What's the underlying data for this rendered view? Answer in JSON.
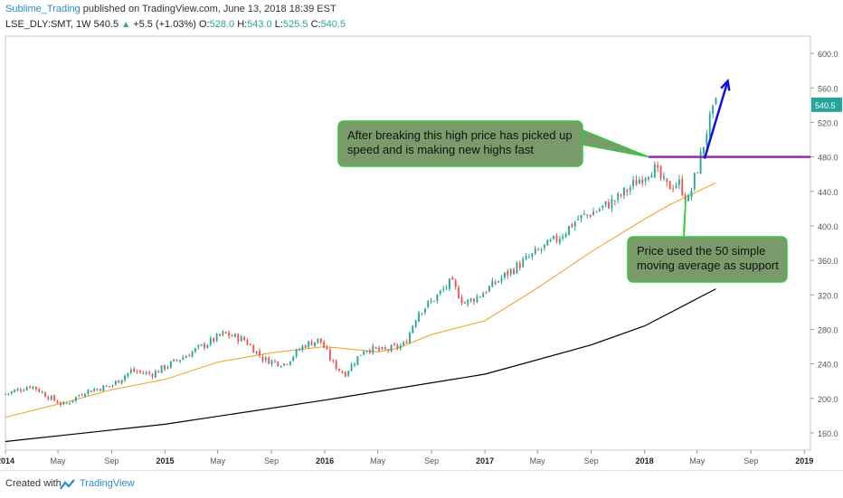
{
  "header": {
    "author": "Sublime_Trading",
    "published": " published on TradingView.com, June 13, 2018 18:39 EST",
    "symbol": "LSE_DLY:SMT, 1W",
    "last": "540.5",
    "change": "+5.5 (+1.03%)",
    "o_label": "O:",
    "o": "528.0",
    "h_label": "H:",
    "h": "543.0",
    "l_label": "L:",
    "l": "525.5",
    "c_label": "C:",
    "c": "540.5"
  },
  "footer": {
    "created": "Created with",
    "brand": "TradingView"
  },
  "colors": {
    "up": "#26a69a",
    "down": "#ef5350",
    "ma50": "#f39c12",
    "ma200": "#000000",
    "resistance": "#9c27b0",
    "arrow": "#1010e0",
    "note_fill": "#7b9a6b",
    "note_border": "#2ecc40",
    "price_badge": "#26a69a"
  },
  "chart_data": {
    "type": "candlestick",
    "title": "",
    "ylim": [
      140,
      620
    ],
    "y_ticks": [
      160,
      200,
      240,
      280,
      320,
      360,
      400,
      440,
      480,
      520,
      560,
      600
    ],
    "y_tick_labels": [
      "160.0",
      "200.0",
      "240.0",
      "280.0",
      "320.0",
      "360.0",
      "400.0",
      "440.0",
      "480.0",
      "520.0",
      "560.0",
      "600.0"
    ],
    "x_tick_labels": [
      "2014",
      "May",
      "Sep",
      "2015",
      "May",
      "Sep",
      "2016",
      "May",
      "Sep",
      "2017",
      "May",
      "Sep",
      "2018",
      "May",
      "Sep",
      "2019"
    ],
    "x_tick_dates": [
      "2014-01-01",
      "2014-05-01",
      "2014-09-01",
      "2015-01-01",
      "2015-05-01",
      "2015-09-01",
      "2016-01-01",
      "2016-05-01",
      "2016-09-01",
      "2017-01-01",
      "2017-05-01",
      "2017-09-01",
      "2018-01-01",
      "2018-05-01",
      "2018-09-01",
      "2019-01-01"
    ],
    "x_bold": [
      "2014",
      "2015",
      "2016",
      "2017",
      "2018",
      "2019"
    ],
    "date_range": [
      "2014-01-01",
      "2019-01-15"
    ],
    "last_price_label": "540.5",
    "last_price": 540.5,
    "close_path": [
      [
        "2014-01-01",
        205
      ],
      [
        "2014-03-01",
        215
      ],
      [
        "2014-04-15",
        200
      ],
      [
        "2014-05-15",
        192
      ],
      [
        "2014-07-01",
        208
      ],
      [
        "2014-09-01",
        215
      ],
      [
        "2014-10-15",
        232
      ],
      [
        "2014-12-01",
        228
      ],
      [
        "2015-02-01",
        245
      ],
      [
        "2015-04-01",
        262
      ],
      [
        "2015-05-15",
        275
      ],
      [
        "2015-07-01",
        268
      ],
      [
        "2015-08-15",
        245
      ],
      [
        "2015-10-01",
        240
      ],
      [
        "2015-11-15",
        262
      ],
      [
        "2015-12-20",
        268
      ],
      [
        "2016-01-20",
        240
      ],
      [
        "2016-02-15",
        228
      ],
      [
        "2016-04-01",
        258
      ],
      [
        "2016-05-15",
        255
      ],
      [
        "2016-07-01",
        262
      ],
      [
        "2016-08-01",
        300
      ],
      [
        "2016-09-01",
        312
      ],
      [
        "2016-10-15",
        335
      ],
      [
        "2016-11-15",
        310
      ],
      [
        "2016-12-15",
        318
      ],
      [
        "2017-01-15",
        330
      ],
      [
        "2017-03-01",
        348
      ],
      [
        "2017-05-01",
        370
      ],
      [
        "2017-06-15",
        385
      ],
      [
        "2017-08-01",
        408
      ],
      [
        "2017-09-15",
        418
      ],
      [
        "2017-11-01",
        432
      ],
      [
        "2017-12-15",
        452
      ],
      [
        "2018-01-20",
        468
      ],
      [
        "2018-02-20",
        445
      ],
      [
        "2018-03-20",
        450
      ],
      [
        "2018-04-10",
        428
      ],
      [
        "2018-04-25",
        455
      ],
      [
        "2018-05-10",
        482
      ],
      [
        "2018-05-25",
        515
      ],
      [
        "2018-06-13",
        540.5
      ]
    ],
    "series": [
      {
        "name": "",
        "kind": "ma50",
        "points": [
          [
            "2014-01-01",
            178
          ],
          [
            "2014-05-15",
            195
          ],
          [
            "2014-09-01",
            210
          ],
          [
            "2015-01-01",
            222
          ],
          [
            "2015-05-01",
            242
          ],
          [
            "2015-09-01",
            253
          ],
          [
            "2016-01-01",
            260
          ],
          [
            "2016-05-01",
            254
          ],
          [
            "2016-06-15",
            258
          ],
          [
            "2016-09-01",
            274
          ],
          [
            "2017-01-01",
            290
          ],
          [
            "2017-05-01",
            328
          ],
          [
            "2017-09-01",
            370
          ],
          [
            "2018-01-01",
            408
          ],
          [
            "2018-03-01",
            425
          ],
          [
            "2018-06-13",
            450
          ]
        ]
      },
      {
        "name": "",
        "kind": "ma200",
        "points": [
          [
            "2014-01-01",
            150
          ],
          [
            "2015-01-01",
            170
          ],
          [
            "2016-01-01",
            198
          ],
          [
            "2017-01-01",
            228
          ],
          [
            "2017-09-01",
            262
          ],
          [
            "2018-01-01",
            284
          ],
          [
            "2018-06-13",
            327
          ]
        ]
      },
      {
        "name": "",
        "kind": "resistance",
        "value": 480,
        "from": "2018-01-10"
      }
    ],
    "annotations": [
      {
        "text": "After breaking this high price has picked up speed and is making new highs fast",
        "points_to": [
          "2018-01-10",
          480
        ]
      },
      {
        "text": "Price used the 50 simple moving average as support",
        "points_to": [
          "2018-04-05",
          432
        ]
      }
    ],
    "arrow": {
      "from": [
        "2018-05-18",
        478
      ],
      "to": [
        "2018-07-10",
        568
      ]
    }
  }
}
